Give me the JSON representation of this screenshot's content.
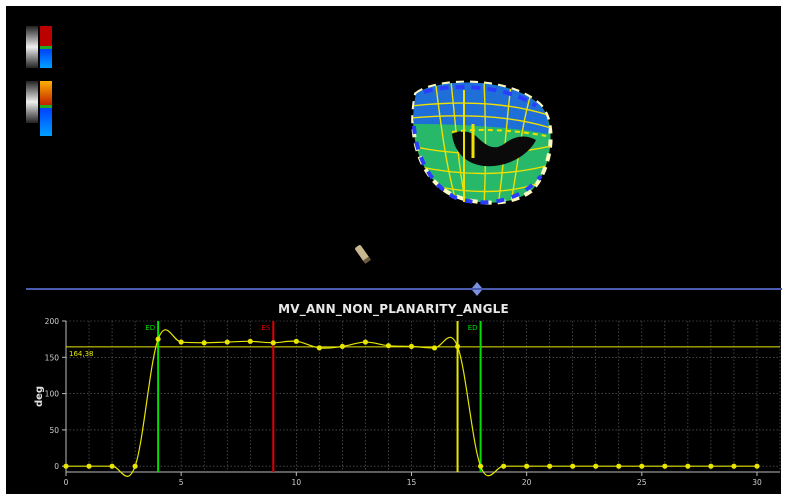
{
  "chart_data": {
    "type": "line",
    "title": "MV_ANN_NON_PLANARITY_ANGLE",
    "ylabel": "deg",
    "xlabel": "",
    "xlim": [
      0,
      31
    ],
    "ylim": [
      -8,
      200
    ],
    "xticks": [
      0,
      5,
      10,
      15,
      20,
      25,
      30
    ],
    "yticks": [
      0,
      50,
      100,
      150,
      200
    ],
    "grid": true,
    "series": [
      {
        "color": "#e6e600",
        "points": [
          [
            0,
            0
          ],
          [
            1,
            0
          ],
          [
            2,
            0
          ],
          [
            3,
            0
          ],
          [
            4,
            175
          ],
          [
            5,
            171
          ],
          [
            6,
            170
          ],
          [
            7,
            171
          ],
          [
            8,
            172
          ],
          [
            9,
            170
          ],
          [
            10,
            172
          ],
          [
            11,
            163
          ],
          [
            12,
            165
          ],
          [
            13,
            171
          ],
          [
            14,
            166
          ],
          [
            15,
            165
          ],
          [
            16,
            163
          ],
          [
            17,
            165
          ],
          [
            18,
            0
          ],
          [
            19,
            0
          ],
          [
            20,
            0
          ],
          [
            21,
            0
          ],
          [
            22,
            0
          ],
          [
            23,
            0
          ],
          [
            24,
            0
          ],
          [
            25,
            0
          ],
          [
            26,
            0
          ],
          [
            27,
            0
          ],
          [
            28,
            0
          ],
          [
            29,
            0
          ],
          [
            30,
            0
          ]
        ]
      }
    ],
    "reference_line": {
      "value": 164.38,
      "label": "164,38",
      "color": "#e6e600"
    },
    "markers": [
      {
        "x": 4,
        "label": "ED",
        "color": "#00e000"
      },
      {
        "x": 9,
        "label": "ES",
        "color": "#e00000"
      },
      {
        "x": 17,
        "label": "",
        "color": "#e6e600"
      },
      {
        "x": 18,
        "label": "ED",
        "color": "#00e000"
      }
    ]
  },
  "colors": {
    "panel_border": "#ffffff",
    "background": "#000000",
    "divider": "#4a5bb0",
    "grid": "#6e6e6e",
    "mesh_blue": "#1f6fd8",
    "mesh_green": "#27b86a",
    "mesh_outline": "#2a3cff",
    "mesh_lines": "#f0e000"
  },
  "icons": {
    "divider_handle": "resize-handle-icon",
    "small_object": "probe-icon"
  }
}
